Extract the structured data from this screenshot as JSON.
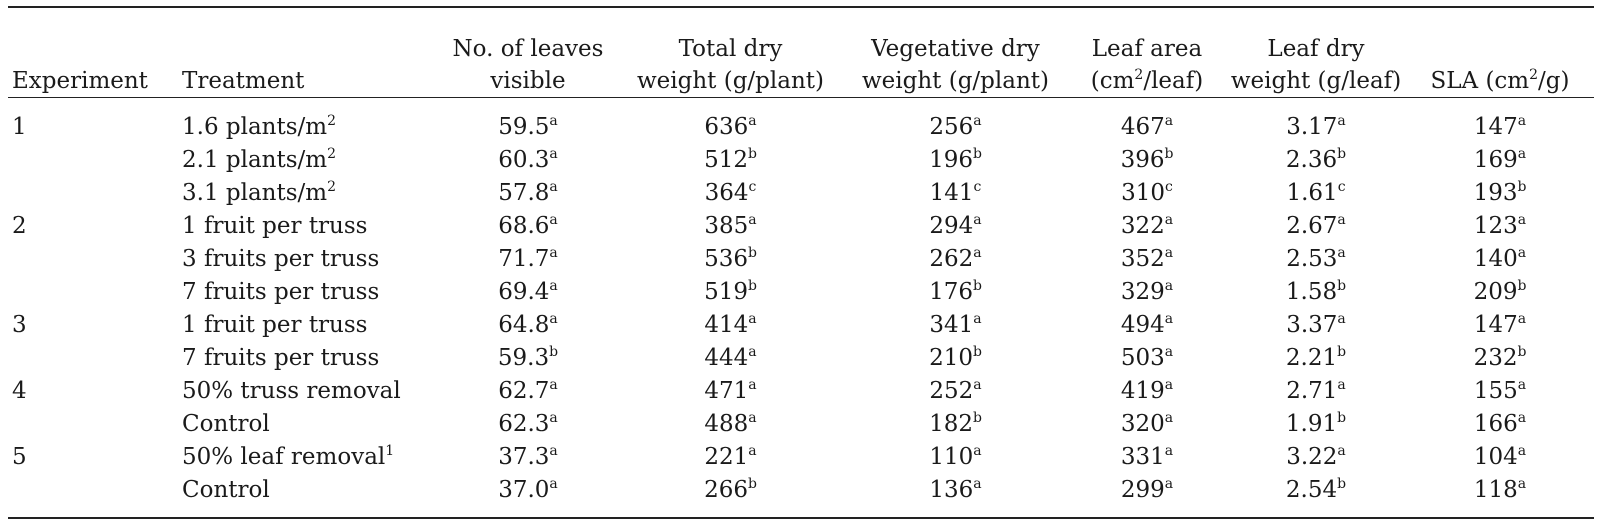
{
  "table": {
    "headers": [
      {
        "line1": "",
        "line2": "Experiment"
      },
      {
        "line1": "",
        "line2": "Treatment"
      },
      {
        "line1": "No. of leaves",
        "line2": "visible"
      },
      {
        "line1": "Total dry",
        "line2": "weight (g/plant)"
      },
      {
        "line1": "Vegetative dry",
        "line2": "weight (g/plant)"
      },
      {
        "line1": "Leaf area",
        "line2": "(cm",
        "line2_sup": "2",
        "line2_post": "/leaf)"
      },
      {
        "line1": "Leaf dry",
        "line2": "weight (g/leaf)"
      },
      {
        "line1": "",
        "line2": "SLA (cm",
        "line2_sup": "2",
        "line2_post": "/g)"
      }
    ],
    "rows": [
      {
        "experiment": "1",
        "treatment": "1.6 plants/m",
        "treatment_sup": "2",
        "cells": [
          [
            "59.5",
            "a"
          ],
          [
            "636",
            "a"
          ],
          [
            "256",
            "a"
          ],
          [
            "467",
            "a"
          ],
          [
            "3.17",
            "a"
          ],
          [
            "147",
            "a"
          ]
        ]
      },
      {
        "experiment": "",
        "treatment": "2.1 plants/m",
        "treatment_sup": "2",
        "cells": [
          [
            "60.3",
            "a"
          ],
          [
            "512",
            "b"
          ],
          [
            "196",
            "b"
          ],
          [
            "396",
            "b"
          ],
          [
            "2.36",
            "b"
          ],
          [
            "169",
            "a"
          ]
        ]
      },
      {
        "experiment": "",
        "treatment": "3.1 plants/m",
        "treatment_sup": "2",
        "cells": [
          [
            "57.8",
            "a"
          ],
          [
            "364",
            "c"
          ],
          [
            "141",
            "c"
          ],
          [
            "310",
            "c"
          ],
          [
            "1.61",
            "c"
          ],
          [
            "193",
            "b"
          ]
        ]
      },
      {
        "experiment": "2",
        "treatment": "1 fruit per truss",
        "treatment_sup": "",
        "cells": [
          [
            "68.6",
            "a"
          ],
          [
            "385",
            "a"
          ],
          [
            "294",
            "a"
          ],
          [
            "322",
            "a"
          ],
          [
            "2.67",
            "a"
          ],
          [
            "123",
            "a"
          ]
        ]
      },
      {
        "experiment": "",
        "treatment": "3 fruits per truss",
        "treatment_sup": "",
        "cells": [
          [
            "71.7",
            "a"
          ],
          [
            "536",
            "b"
          ],
          [
            "262",
            "a"
          ],
          [
            "352",
            "a"
          ],
          [
            "2.53",
            "a"
          ],
          [
            "140",
            "a"
          ]
        ]
      },
      {
        "experiment": "",
        "treatment": "7 fruits per truss",
        "treatment_sup": "",
        "cells": [
          [
            "69.4",
            "a"
          ],
          [
            "519",
            "b"
          ],
          [
            "176",
            "b"
          ],
          [
            "329",
            "a"
          ],
          [
            "1.58",
            "b"
          ],
          [
            "209",
            "b"
          ]
        ]
      },
      {
        "experiment": "3",
        "treatment": "1 fruit per truss",
        "treatment_sup": "",
        "cells": [
          [
            "64.8",
            "a"
          ],
          [
            "414",
            "a"
          ],
          [
            "341",
            "a"
          ],
          [
            "494",
            "a"
          ],
          [
            "3.37",
            "a"
          ],
          [
            "147",
            "a"
          ]
        ]
      },
      {
        "experiment": "",
        "treatment": "7 fruits per truss",
        "treatment_sup": "",
        "cells": [
          [
            "59.3",
            "b"
          ],
          [
            "444",
            "a"
          ],
          [
            "210",
            "b"
          ],
          [
            "503",
            "a"
          ],
          [
            "2.21",
            "b"
          ],
          [
            "232",
            "b"
          ]
        ]
      },
      {
        "experiment": "4",
        "treatment": "50% truss removal",
        "treatment_sup": "",
        "cells": [
          [
            "62.7",
            "a"
          ],
          [
            "471",
            "a"
          ],
          [
            "252",
            "a"
          ],
          [
            "419",
            "a"
          ],
          [
            "2.71",
            "a"
          ],
          [
            "155",
            "a"
          ]
        ]
      },
      {
        "experiment": "",
        "treatment": "Control",
        "treatment_sup": "",
        "cells": [
          [
            "62.3",
            "a"
          ],
          [
            "488",
            "a"
          ],
          [
            "182",
            "b"
          ],
          [
            "320",
            "a"
          ],
          [
            "1.91",
            "b"
          ],
          [
            "166",
            "a"
          ]
        ]
      },
      {
        "experiment": "5",
        "treatment": "50% leaf removal",
        "treatment_sup": "1",
        "cells": [
          [
            "37.3",
            "a"
          ],
          [
            "221",
            "a"
          ],
          [
            "110",
            "a"
          ],
          [
            "331",
            "a"
          ],
          [
            "3.22",
            "a"
          ],
          [
            "104",
            "a"
          ]
        ]
      },
      {
        "experiment": "",
        "treatment": "Control",
        "treatment_sup": "",
        "cells": [
          [
            "37.0",
            "a"
          ],
          [
            "266",
            "b"
          ],
          [
            "136",
            "a"
          ],
          [
            "299",
            "a"
          ],
          [
            "2.54",
            "b"
          ],
          [
            "118",
            "a"
          ]
        ]
      }
    ]
  }
}
